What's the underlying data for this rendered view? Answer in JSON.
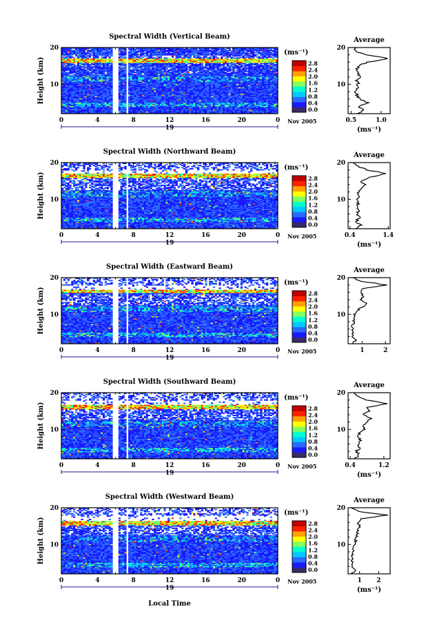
{
  "figure": {
    "colorbar_unit": "(ms⁻¹)",
    "colorbar_ticks": [
      "0.0",
      "0.4",
      "0.8",
      "1.2",
      "1.6",
      "2.0",
      "2.4",
      "2.8"
    ],
    "x_tick_labels": [
      "0",
      "4",
      "8",
      "12",
      "16",
      "20",
      "0"
    ],
    "day_label": "19",
    "month_label": "Nov 2005",
    "ylabel": "Height (km)",
    "y_tick_labels": [
      "10",
      "20"
    ],
    "xlabel_bottom": "Local Time",
    "avg_title": "Average",
    "avg_unit_label": "(ms⁻¹)"
  },
  "colors": {
    "colorscale": [
      "#3a2a6a",
      "#1a1aff",
      "#2a6aff",
      "#00c8ff",
      "#00ffd0",
      "#80ff60",
      "#ffff00",
      "#ffa000",
      "#ff2000",
      "#c00000"
    ]
  },
  "chart_data": [
    {
      "type": "heatmap",
      "title": "Spectral Width (Vertical Beam)",
      "xlabel": "Local Time",
      "ylabel": "Height (km)",
      "x_range_hours": [
        0,
        24
      ],
      "y_range_km": [
        2,
        20
      ],
      "colorbar_range": [
        0.0,
        2.8
      ],
      "data_gaps_hours": [
        [
          5.7,
          6.3
        ],
        [
          7.1,
          7.4
        ]
      ],
      "average_profile": {
        "title": "Average",
        "xlabel": "(ms⁻¹)",
        "x_tick_labels": [
          "0.5",
          "1.0"
        ],
        "x_range": [
          0.45,
          1.15
        ],
        "y_range_km": [
          2,
          20
        ],
        "height_km": [
          2,
          3,
          4,
          5,
          6,
          7,
          8,
          9,
          10,
          11,
          12,
          13,
          14,
          15,
          16,
          17,
          18,
          19,
          20
        ],
        "values": [
          0.6,
          0.72,
          0.62,
          0.78,
          0.64,
          0.6,
          0.58,
          0.6,
          0.62,
          0.6,
          0.64,
          0.62,
          0.6,
          0.62,
          0.78,
          1.12,
          0.75,
          0.58,
          0.55
        ]
      }
    },
    {
      "type": "heatmap",
      "title": "Spectral Width (Northward Beam)",
      "xlabel": "Local Time",
      "ylabel": "Height (km)",
      "x_range_hours": [
        0,
        24
      ],
      "y_range_km": [
        2,
        20
      ],
      "colorbar_range": [
        0.0,
        2.8
      ],
      "data_gaps_hours": [
        [
          5.7,
          6.3
        ],
        [
          7.1,
          7.4
        ]
      ],
      "average_profile": {
        "title": "Average",
        "xlabel": "(ms⁻¹)",
        "x_tick_labels": [
          "0.4",
          "1.4"
        ],
        "x_range": [
          0.35,
          1.45
        ],
        "y_range_km": [
          2,
          20
        ],
        "height_km": [
          2,
          3,
          4,
          5,
          6,
          7,
          8,
          9,
          10,
          11,
          12,
          13,
          14,
          15,
          16,
          17,
          18,
          19,
          20
        ],
        "values": [
          0.55,
          0.7,
          0.55,
          0.65,
          0.58,
          0.62,
          0.6,
          0.62,
          0.6,
          0.65,
          0.62,
          0.7,
          0.8,
          0.7,
          0.9,
          1.38,
          0.85,
          0.6,
          0.5
        ]
      }
    },
    {
      "type": "heatmap",
      "title": "Spectral Width (Eastward Beam)",
      "xlabel": "Local Time",
      "ylabel": "Height (km)",
      "x_range_hours": [
        0,
        24
      ],
      "y_range_km": [
        2,
        20
      ],
      "colorbar_range": [
        0.0,
        2.8
      ],
      "data_gaps_hours": [
        [
          5.7,
          6.3
        ],
        [
          7.1,
          7.4
        ]
      ],
      "average_profile": {
        "title": "Average",
        "xlabel": "",
        "x_tick_labels": [
          "1",
          "2"
        ],
        "x_range": [
          0.4,
          2.2
        ],
        "y_range_km": [
          2,
          20
        ],
        "height_km": [
          2,
          3,
          4,
          5,
          6,
          7,
          8,
          9,
          10,
          11,
          12,
          13,
          14,
          15,
          16,
          17,
          18,
          19,
          20
        ],
        "values": [
          0.6,
          0.7,
          0.62,
          0.6,
          0.58,
          0.6,
          0.62,
          0.7,
          0.65,
          0.8,
          1.0,
          1.2,
          0.9,
          1.1,
          0.9,
          1.0,
          2.05,
          1.0,
          0.6
        ]
      }
    },
    {
      "type": "heatmap",
      "title": "Spectral Width (Southward Beam)",
      "xlabel": "Local Time",
      "ylabel": "Height (km)",
      "x_range_hours": [
        0,
        24
      ],
      "y_range_km": [
        2,
        20
      ],
      "colorbar_range": [
        0.0,
        2.8
      ],
      "data_gaps_hours": [
        [
          5.7,
          6.3
        ],
        [
          7.1,
          7.4
        ]
      ],
      "average_profile": {
        "title": "Average",
        "xlabel": "(ms⁻¹)",
        "x_tick_labels": [
          "0.4",
          "1.2"
        ],
        "x_range": [
          0.35,
          1.35
        ],
        "y_range_km": [
          2,
          20
        ],
        "height_km": [
          2,
          3,
          4,
          5,
          6,
          7,
          8,
          9,
          10,
          11,
          12,
          13,
          14,
          15,
          16,
          17,
          18,
          19,
          20
        ],
        "values": [
          0.5,
          0.6,
          0.55,
          0.62,
          0.58,
          0.65,
          0.6,
          0.62,
          0.75,
          0.7,
          0.8,
          0.9,
          0.7,
          0.85,
          0.8,
          1.28,
          0.8,
          0.6,
          0.5
        ]
      }
    },
    {
      "type": "heatmap",
      "title": "Spectral Width (Westward Beam)",
      "xlabel": "Local Time",
      "ylabel": "Height (km)",
      "x_range_hours": [
        0,
        24
      ],
      "y_range_km": [
        2,
        20
      ],
      "colorbar_range": [
        0.0,
        2.8
      ],
      "data_gaps_hours": [
        [
          5.7,
          6.3
        ],
        [
          7.1,
          7.4
        ]
      ],
      "average_profile": {
        "title": "Average",
        "xlabel": "(ms⁻¹)",
        "x_tick_labels": [
          "1",
          "2"
        ],
        "x_range": [
          0.4,
          2.6
        ],
        "y_range_km": [
          2,
          20
        ],
        "height_km": [
          2,
          3,
          4,
          5,
          6,
          7,
          8,
          9,
          10,
          11,
          12,
          13,
          14,
          15,
          16,
          17,
          18,
          19,
          20
        ],
        "values": [
          0.6,
          0.8,
          0.62,
          0.6,
          0.58,
          0.62,
          0.6,
          0.7,
          0.72,
          0.8,
          0.78,
          0.9,
          0.85,
          1.0,
          0.9,
          1.1,
          2.45,
          0.9,
          0.55
        ]
      }
    }
  ]
}
